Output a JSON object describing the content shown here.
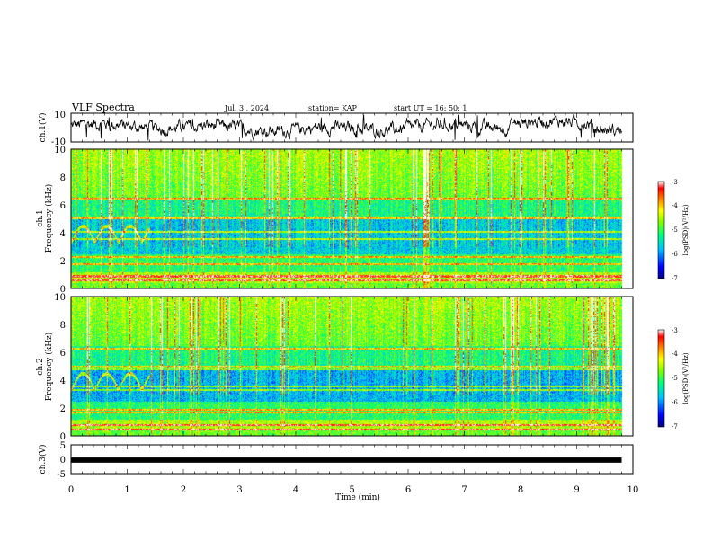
{
  "header": {
    "title": "VLF Spectra",
    "date": "Jul. 3 , 2024",
    "station": "station= KAP",
    "start_time": "start UT = 16: 50: 1"
  },
  "chart_data": [
    {
      "type": "line",
      "ylabel": "ch.1(V)",
      "ylim": [
        -10,
        10
      ],
      "yticks": [
        "10",
        "-10"
      ],
      "xlim": [
        0,
        10
      ],
      "note": "noisy waveform oscillating around 0 V with amplitude about ±5 V, ending near 9.8 min"
    },
    {
      "type": "heatmap",
      "ylabel_channel": "ch.1",
      "ylabel": "Frequency (kHz)",
      "yticks": [
        "0",
        "2",
        "4",
        "6",
        "8",
        "10"
      ],
      "ylim": [
        0,
        10
      ],
      "xlim": [
        0,
        10
      ],
      "colorbar": {
        "label": "log(PSD)(V²/Hz)",
        "ticks": [
          "-3",
          "-4",
          "-5",
          "-6",
          "-7"
        ],
        "range": [
          -7,
          -3
        ],
        "colors": [
          "#000080",
          "#0000ff",
          "#00bfff",
          "#00ff80",
          "#80ff00",
          "#ffff00",
          "#ff8000",
          "#ff0000",
          "#ffffff"
        ]
      }
    },
    {
      "type": "heatmap",
      "ylabel_channel": "ch.2",
      "ylabel": "Frequency (kHz)",
      "yticks": [
        "0",
        "2",
        "4",
        "6",
        "8",
        "10"
      ],
      "ylim": [
        0,
        10
      ],
      "xlim": [
        0,
        10
      ],
      "colorbar": {
        "label": "log(PSD)(V²/Hz)",
        "ticks": [
          "-3",
          "-4",
          "-5",
          "-6",
          "-7"
        ],
        "range": [
          -7,
          -3
        ]
      }
    },
    {
      "type": "line",
      "ylabel": "ch.3(V)",
      "ylim": [
        -5,
        5
      ],
      "yticks": [
        "5",
        "0",
        "-5"
      ],
      "xlim": [
        0,
        10
      ],
      "note": "thick flat band at about -0.3 V from 0 to 9.8 min"
    }
  ],
  "xaxis": {
    "label": "Time (min)",
    "ticks": [
      "0",
      "1",
      "2",
      "3",
      "4",
      "5",
      "6",
      "7",
      "8",
      "9",
      "10"
    ]
  }
}
